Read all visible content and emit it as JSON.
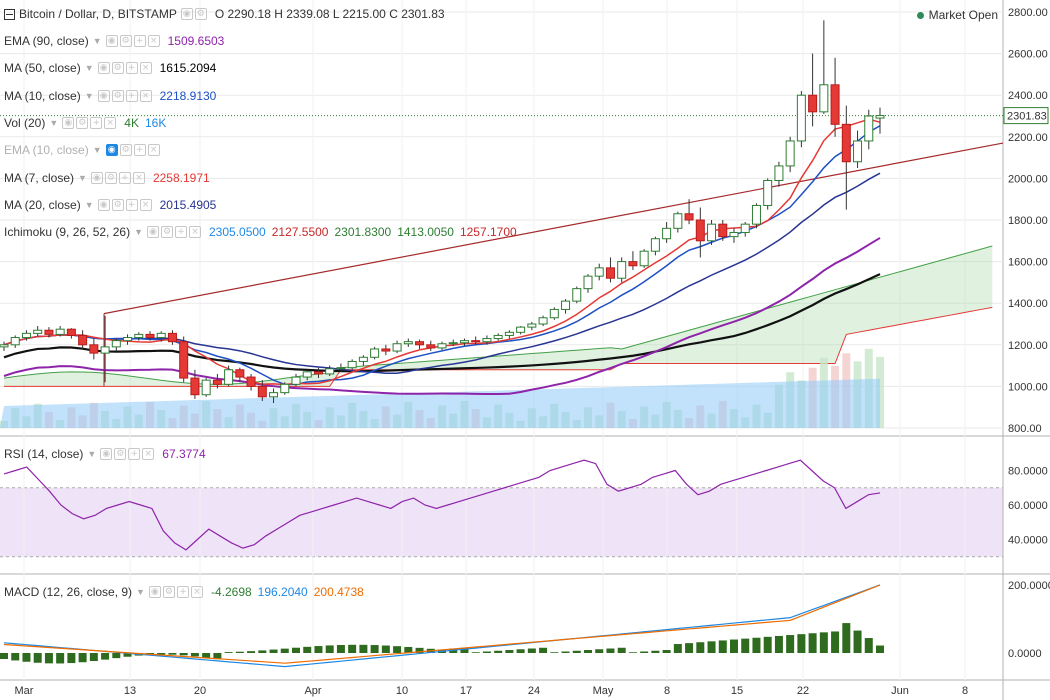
{
  "header": {
    "title": "Bitcoin / Dollar, D, BITSTAMP",
    "ohlc": "O 2290.18 H 2339.08 L 2215.00 C 2301.83",
    "market_status": "Market Open"
  },
  "indicators": [
    {
      "label": "EMA (90, close)",
      "values": [
        {
          "text": "1509.6503",
          "color": "#8e24aa"
        }
      ]
    },
    {
      "label": "MA (50, close)",
      "values": [
        {
          "text": "1615.2094",
          "color": "#000000"
        }
      ]
    },
    {
      "label": "MA (10, close)",
      "values": [
        {
          "text": "2218.9130",
          "color": "#1e4fc4"
        }
      ]
    },
    {
      "label": "Vol (20)",
      "values": [
        {
          "text": "4K",
          "color": "#2e7d32"
        },
        {
          "text": "16K",
          "color": "#1e88e5"
        }
      ]
    },
    {
      "label": "EMA (10, close)",
      "values": [],
      "muted": true
    },
    {
      "label": "MA (7, close)",
      "values": [
        {
          "text": "2258.1971",
          "color": "#e53935"
        }
      ]
    },
    {
      "label": "MA (20, close)",
      "values": [
        {
          "text": "2015.4905",
          "color": "#283593"
        }
      ]
    },
    {
      "label": "Ichimoku (9, 26, 52, 26)",
      "values": [
        {
          "text": "2305.0500",
          "color": "#1e88e5"
        },
        {
          "text": "2127.5500",
          "color": "#c62828"
        },
        {
          "text": "2301.8300",
          "color": "#2e7d32"
        },
        {
          "text": "1413.0050",
          "color": "#2e7d32"
        },
        {
          "text": "1257.1700",
          "color": "#c62828"
        }
      ]
    }
  ],
  "rsi": {
    "label": "RSI (14, close)",
    "value": "67.3774",
    "value_color": "#8e24aa"
  },
  "macd": {
    "label": "MACD (12, 26, close, 9)",
    "values": [
      {
        "text": "-4.2698",
        "color": "#2e7d32"
      },
      {
        "text": "196.2040",
        "color": "#1e88e5"
      },
      {
        "text": "200.4738",
        "color": "#ef6c00"
      }
    ]
  },
  "price_axis": {
    "ticks": [
      "2800.00",
      "2600.00",
      "2400.00",
      "2200.00",
      "2000.00",
      "1800.00",
      "1600.00",
      "1400.00",
      "1200.00",
      "1000.00",
      "800.00"
    ],
    "last_price": "2301.83"
  },
  "rsi_axis": {
    "ticks": [
      "80.0000",
      "60.0000",
      "40.0000"
    ]
  },
  "macd_axis": {
    "ticks": [
      "200.0000",
      "0.0000"
    ]
  },
  "time_axis": {
    "ticks": [
      "Mar",
      "13",
      "20",
      "Apr",
      "10",
      "17",
      "24",
      "May",
      "8",
      "15",
      "22",
      "Jun",
      "8"
    ]
  },
  "colors": {
    "up": "#26a69a",
    "down": "#e53935",
    "grid": "#eaeaea",
    "rsi_band": "#efe3f7"
  },
  "chart_data": {
    "type": "candlestick",
    "symbol": "Bitcoin / Dollar, D, BITSTAMP",
    "ylim": [
      800,
      2800
    ],
    "last": {
      "open": 2290.18,
      "high": 2339.08,
      "low": 2215.0,
      "close": 2301.83
    },
    "ohlc": [
      [
        1190,
        1215,
        1170,
        1200
      ],
      [
        1200,
        1245,
        1185,
        1235
      ],
      [
        1235,
        1270,
        1220,
        1255
      ],
      [
        1255,
        1290,
        1240,
        1270
      ],
      [
        1270,
        1285,
        1235,
        1250
      ],
      [
        1250,
        1290,
        1240,
        1275
      ],
      [
        1275,
        1280,
        1230,
        1245
      ],
      [
        1245,
        1270,
        1180,
        1200
      ],
      [
        1200,
        1230,
        1130,
        1160
      ],
      [
        1160,
        1340,
        1020,
        1190
      ],
      [
        1190,
        1230,
        1170,
        1220
      ],
      [
        1220,
        1250,
        1200,
        1235
      ],
      [
        1235,
        1260,
        1220,
        1250
      ],
      [
        1250,
        1265,
        1220,
        1235
      ],
      [
        1235,
        1265,
        1215,
        1255
      ],
      [
        1255,
        1270,
        1200,
        1215
      ],
      [
        1215,
        1240,
        1020,
        1040
      ],
      [
        1040,
        1080,
        940,
        960
      ],
      [
        960,
        1040,
        950,
        1030
      ],
      [
        1030,
        1060,
        990,
        1010
      ],
      [
        1010,
        1100,
        1000,
        1080
      ],
      [
        1080,
        1090,
        1020,
        1045
      ],
      [
        1045,
        1060,
        980,
        1000
      ],
      [
        1000,
        1030,
        930,
        950
      ],
      [
        950,
        990,
        920,
        970
      ],
      [
        970,
        1020,
        960,
        1010
      ],
      [
        1010,
        1060,
        1000,
        1045
      ],
      [
        1045,
        1080,
        1030,
        1070
      ],
      [
        1070,
        1090,
        1040,
        1060
      ],
      [
        1060,
        1100,
        1050,
        1085
      ],
      [
        1085,
        1110,
        1070,
        1090
      ],
      [
        1090,
        1130,
        1080,
        1120
      ],
      [
        1120,
        1150,
        1100,
        1140
      ],
      [
        1140,
        1190,
        1130,
        1180
      ],
      [
        1180,
        1200,
        1150,
        1170
      ],
      [
        1170,
        1220,
        1160,
        1205
      ],
      [
        1205,
        1230,
        1190,
        1215
      ],
      [
        1215,
        1225,
        1180,
        1200
      ],
      [
        1200,
        1220,
        1170,
        1185
      ],
      [
        1185,
        1215,
        1175,
        1205
      ],
      [
        1205,
        1225,
        1195,
        1210
      ],
      [
        1210,
        1230,
        1195,
        1220
      ],
      [
        1220,
        1240,
        1200,
        1215
      ],
      [
        1215,
        1245,
        1200,
        1230
      ],
      [
        1230,
        1255,
        1220,
        1245
      ],
      [
        1245,
        1270,
        1230,
        1260
      ],
      [
        1260,
        1290,
        1250,
        1285
      ],
      [
        1285,
        1310,
        1270,
        1300
      ],
      [
        1300,
        1340,
        1290,
        1330
      ],
      [
        1330,
        1380,
        1320,
        1370
      ],
      [
        1370,
        1420,
        1350,
        1410
      ],
      [
        1410,
        1480,
        1400,
        1470
      ],
      [
        1470,
        1540,
        1450,
        1530
      ],
      [
        1530,
        1590,
        1510,
        1570
      ],
      [
        1570,
        1620,
        1500,
        1520
      ],
      [
        1520,
        1620,
        1500,
        1600
      ],
      [
        1600,
        1650,
        1560,
        1580
      ],
      [
        1580,
        1660,
        1570,
        1650
      ],
      [
        1650,
        1720,
        1630,
        1710
      ],
      [
        1710,
        1790,
        1690,
        1760
      ],
      [
        1760,
        1840,
        1740,
        1830
      ],
      [
        1830,
        1900,
        1780,
        1800
      ],
      [
        1800,
        1860,
        1620,
        1700
      ],
      [
        1700,
        1800,
        1680,
        1780
      ],
      [
        1780,
        1800,
        1700,
        1720
      ],
      [
        1720,
        1760,
        1690,
        1740
      ],
      [
        1740,
        1790,
        1720,
        1780
      ],
      [
        1780,
        1880,
        1760,
        1870
      ],
      [
        1870,
        2000,
        1850,
        1990
      ],
      [
        1990,
        2080,
        1960,
        2060
      ],
      [
        2060,
        2200,
        2030,
        2180
      ],
      [
        2180,
        2420,
        2150,
        2400
      ],
      [
        2400,
        2600,
        2250,
        2320
      ],
      [
        2320,
        2760,
        2310,
        2450
      ],
      [
        2450,
        2580,
        2200,
        2260
      ],
      [
        2260,
        2350,
        1850,
        2080
      ],
      [
        2080,
        2230,
        2050,
        2180
      ],
      [
        2180,
        2330,
        2140,
        2300
      ],
      [
        2290,
        2340,
        2215,
        2302
      ]
    ],
    "volume_ylim": [
      0,
      20000
    ],
    "rsi": {
      "label": "RSI (14, close)",
      "ylim": [
        20,
        100
      ],
      "band": [
        30,
        70
      ],
      "last": 67.3774
    },
    "macd": {
      "label": "MACD (12, 26, close, 9)",
      "macd": 196.204,
      "signal": 200.4738,
      "hist": -4.2698
    },
    "x_ticks": [
      "Mar",
      "13",
      "20",
      "Apr",
      "10",
      "17",
      "24",
      "May",
      "8",
      "15",
      "22",
      "Jun",
      "8"
    ]
  }
}
